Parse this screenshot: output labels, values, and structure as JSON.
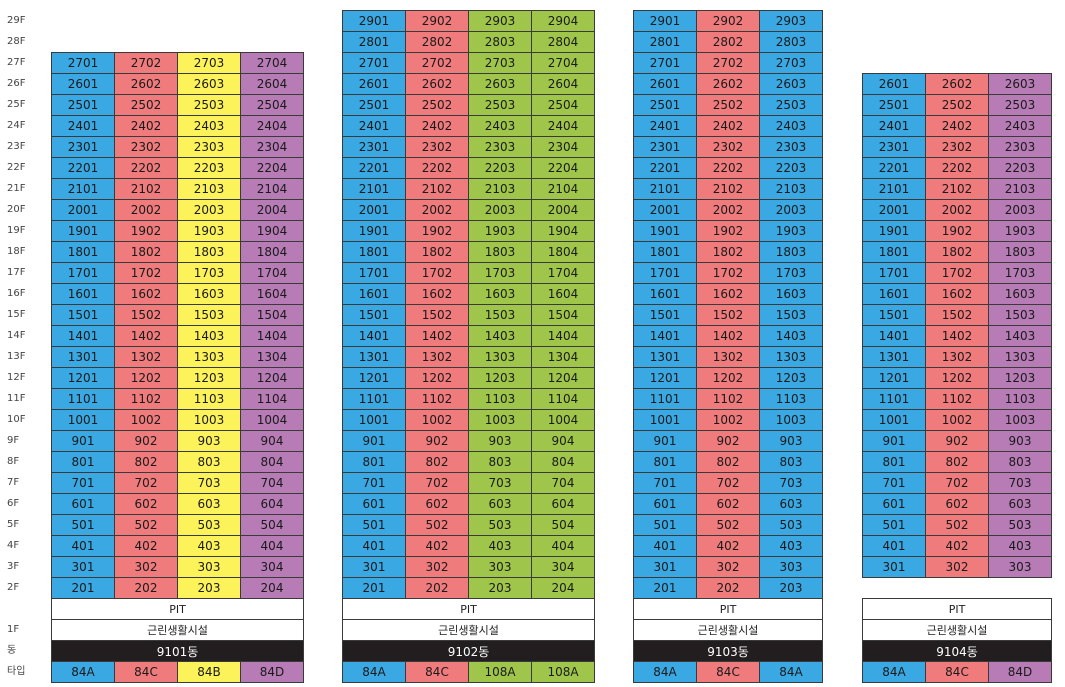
{
  "colors": {
    "blue": "#3aa8e2",
    "pink": "#ef7b7d",
    "yellow": "#fcf35a",
    "purple": "#b77cb5",
    "green": "#9fc64a",
    "white": "#ffffff",
    "dark": "#221e1f"
  },
  "row_labels": [
    "29F",
    "28F",
    "27F",
    "26F",
    "25F",
    "24F",
    "23F",
    "22F",
    "21F",
    "20F",
    "19F",
    "18F",
    "17F",
    "16F",
    "15F",
    "14F",
    "13F",
    "12F",
    "11F",
    "10F",
    "9F",
    "8F",
    "7F",
    "6F",
    "5F",
    "4F",
    "3F",
    "2F",
    "",
    "1F",
    "동",
    "타입"
  ],
  "buildings": [
    {
      "name": "9101동",
      "top_floor": 27,
      "bottom_floor": 2,
      "lines": [
        1,
        2,
        3,
        4
      ],
      "colors": [
        "blue",
        "pink",
        "yellow",
        "purple"
      ],
      "pit": "PIT",
      "facility": "근린생활시설",
      "types": [
        "84A",
        "84C",
        "84B",
        "84D"
      ]
    },
    {
      "name": "9102동",
      "top_floor": 29,
      "bottom_floor": 2,
      "lines": [
        1,
        2,
        3,
        4
      ],
      "colors": [
        "blue",
        "pink",
        "green",
        "green"
      ],
      "pit": "PIT",
      "facility": "근린생활시설",
      "types": [
        "84A",
        "84C",
        "108A",
        "108A"
      ]
    },
    {
      "name": "9103동",
      "top_floor": 29,
      "bottom_floor": 2,
      "lines": [
        1,
        2,
        3
      ],
      "colors": [
        "blue",
        "pink",
        "blue"
      ],
      "pit": "PIT",
      "facility": "근린생활시설",
      "types": [
        "84A",
        "84C",
        "84A"
      ]
    },
    {
      "name": "9104동",
      "top_floor": 26,
      "bottom_floor": 3,
      "lines": [
        1,
        2,
        3
      ],
      "colors": [
        "blue",
        "pink",
        "purple"
      ],
      "pit": "PIT",
      "facility": "근린생활시설",
      "types": [
        "84A",
        "84C",
        "84D"
      ]
    }
  ]
}
